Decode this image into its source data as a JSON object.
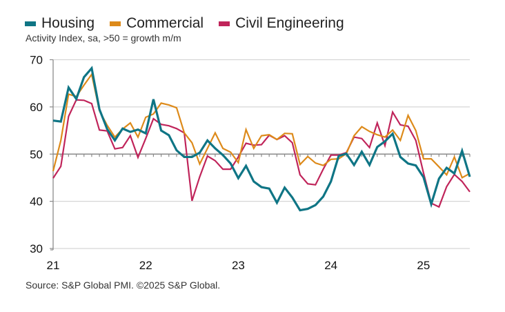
{
  "legend": [
    {
      "label": "Housing",
      "color": "#0f7585"
    },
    {
      "label": "Commercial",
      "color": "#dd8a1a"
    },
    {
      "label": "Civil Engineering",
      "color": "#c0245a"
    }
  ],
  "subtitle": "Activity Index, sa, >50 = growth m/m",
  "source": "Source: S&P Global PMI. ©2025 S&P Global.",
  "chart_data": {
    "type": "line",
    "title": "",
    "subtitle": "Activity Index, sa, >50 = growth m/m",
    "xlabel": "",
    "ylabel": "",
    "ylim": [
      30,
      70
    ],
    "yticks": [
      30,
      40,
      50,
      60,
      70
    ],
    "reference_line": 50,
    "grid": true,
    "legend_position": "top-left",
    "x_start": "2021-01",
    "x_frequency": "monthly",
    "xtick_labels": [
      "21",
      "22",
      "23",
      "24",
      "25"
    ],
    "x": [
      "Jan-21",
      "Feb-21",
      "Mar-21",
      "Apr-21",
      "May-21",
      "Jun-21",
      "Jul-21",
      "Aug-21",
      "Sep-21",
      "Oct-21",
      "Nov-21",
      "Dec-21",
      "Jan-22",
      "Feb-22",
      "Mar-22",
      "Apr-22",
      "May-22",
      "Jun-22",
      "Jul-22",
      "Aug-22",
      "Sep-22",
      "Oct-22",
      "Nov-22",
      "Dec-22",
      "Jan-23",
      "Feb-23",
      "Mar-23",
      "Apr-23",
      "May-23",
      "Jun-23",
      "Jul-23",
      "Aug-23",
      "Sep-23",
      "Oct-23",
      "Nov-23",
      "Dec-23",
      "Jan-24",
      "Feb-24",
      "Mar-24",
      "Apr-24",
      "May-24",
      "Jun-24",
      "Jul-24",
      "Aug-24",
      "Sep-24",
      "Oct-24",
      "Nov-24",
      "Dec-24",
      "Jan-25",
      "Feb-25",
      "Mar-25",
      "Apr-25",
      "May-25",
      "Jun-25",
      "Jul-25"
    ],
    "series": [
      {
        "name": "Housing",
        "color": "#0f7585",
        "values": [
          57.1,
          56.9,
          64.1,
          61.7,
          66.3,
          68.2,
          59.5,
          55.3,
          52.9,
          55.4,
          54.7,
          55.2,
          54.4,
          61.6,
          55.0,
          54.0,
          50.8,
          49.4,
          49.4,
          50.3,
          52.9,
          51.2,
          49.8,
          48.0,
          44.9,
          47.5,
          44.2,
          43.0,
          42.7,
          39.7,
          42.9,
          40.8,
          38.1,
          38.4,
          39.2,
          41.0,
          44.2,
          49.6,
          50.1,
          47.7,
          50.5,
          47.7,
          51.5,
          52.7,
          54.3,
          49.4,
          48.0,
          47.6,
          45.1,
          39.4,
          44.8,
          47.1,
          45.9,
          50.7,
          45.2
        ]
      },
      {
        "name": "Commercial",
        "color": "#dd8a1a",
        "values": [
          46.4,
          52.9,
          62.7,
          62.2,
          64.6,
          66.9,
          59.2,
          56.1,
          53.6,
          55.3,
          56.6,
          53.6,
          57.8,
          58.5,
          60.8,
          60.4,
          59.8,
          54.5,
          52.4,
          47.9,
          51.2,
          54.5,
          51.2,
          50.4,
          48.2,
          55.2,
          51.2,
          53.9,
          54.1,
          53.1,
          54.4,
          54.3,
          47.8,
          49.5,
          48.1,
          47.6,
          48.9,
          49.0,
          50.1,
          53.9,
          55.8,
          54.8,
          54.1,
          53.6,
          55.1,
          52.9,
          58.2,
          55.0,
          49.0,
          49.0,
          47.3,
          45.6,
          49.4,
          45.0,
          45.9
        ]
      },
      {
        "name": "Civil Engineering",
        "color": "#c0245a",
        "values": [
          44.9,
          47.4,
          58.0,
          61.5,
          61.4,
          60.7,
          55.1,
          54.9,
          51.1,
          51.4,
          53.9,
          49.3,
          53.3,
          57.5,
          56.3,
          56.0,
          55.4,
          54.5,
          40.1,
          45.2,
          49.6,
          48.6,
          46.8,
          46.8,
          49.4,
          52.3,
          51.9,
          52.0,
          54.0,
          53.1,
          53.9,
          52.4,
          45.6,
          43.7,
          43.5,
          46.8,
          49.8,
          49.8,
          50.3,
          53.6,
          53.3,
          51.4,
          56.6,
          51.8,
          58.9,
          56.2,
          55.9,
          52.9,
          46.0,
          39.6,
          38.8,
          43.1,
          45.7,
          44.2,
          42.0
        ]
      }
    ]
  }
}
